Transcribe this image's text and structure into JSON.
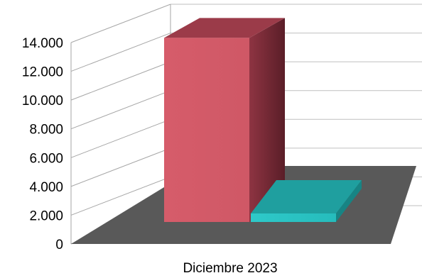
{
  "chart_data": {
    "type": "bar",
    "categories": [
      "Diciembre 2023"
    ],
    "series": [
      {
        "values": [
          12800
        ],
        "color": "#d55b69"
      },
      {
        "values": [
          -600
        ],
        "color": "#29c3c3"
      }
    ],
    "ylim": [
      0,
      14000
    ],
    "yticks": [
      {
        "value": 0,
        "label": "0"
      },
      {
        "value": 2000,
        "label": "2.000"
      },
      {
        "value": 4000,
        "label": "4.000"
      },
      {
        "value": 6000,
        "label": "6.000"
      },
      {
        "value": 8000,
        "label": "8.000"
      },
      {
        "value": 10000,
        "label": "10.000"
      },
      {
        "value": 12000,
        "label": "12.000"
      },
      {
        "value": 14000,
        "label": "14.000"
      }
    ],
    "grid": true,
    "style": "3d",
    "floor_color": "#595959"
  }
}
